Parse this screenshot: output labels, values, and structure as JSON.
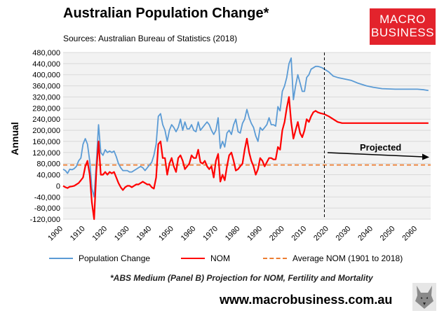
{
  "header": {
    "title": "Australian Population Change*",
    "source": "Sources: Australian Bureau of Statistics (2018)"
  },
  "logo": {
    "line1": "MACRO",
    "line2": "BUSINESS"
  },
  "footer": {
    "footnote": "*ABS Medium (Panel B) Projection for NOM, Fertility and Mortality",
    "url": "www.macrobusiness.com.au"
  },
  "colors": {
    "population": "#5b9bd5",
    "nom": "#ff0000",
    "average": "#ed7d31",
    "plot_bg": "#f2f2f2",
    "logo": "#e3232c"
  },
  "chart_data": {
    "type": "line",
    "title": "Australian Population Change*",
    "xlabel": "",
    "ylabel": "Annual",
    "xlim": [
      1900,
      2066
    ],
    "ylim": [
      -120000,
      480000
    ],
    "x_ticks": [
      1900,
      1910,
      1920,
      1930,
      1940,
      1950,
      1960,
      1970,
      1980,
      1990,
      2000,
      2010,
      2020,
      2030,
      2040,
      2050,
      2060
    ],
    "y_ticks": [
      -120000,
      -80000,
      -40000,
      0,
      40000,
      80000,
      120000,
      160000,
      200000,
      240000,
      280000,
      320000,
      360000,
      400000,
      440000,
      480000
    ],
    "y_tick_labels": [
      "-120,000",
      "-80,000",
      "-40,000",
      "0",
      "40,000",
      "80,000",
      "120,000",
      "160,000",
      "200,000",
      "240,000",
      "280,000",
      "320,000",
      "360,000",
      "400,000",
      "440,000",
      "480,000"
    ],
    "projection_start": 2018,
    "annotation": "Projected",
    "legend_position": "bottom",
    "series": [
      {
        "name": "Population Change",
        "points": [
          [
            1900,
            60000
          ],
          [
            1901,
            55000
          ],
          [
            1902,
            45000
          ],
          [
            1903,
            60000
          ],
          [
            1904,
            58000
          ],
          [
            1905,
            62000
          ],
          [
            1906,
            70000
          ],
          [
            1907,
            90000
          ],
          [
            1908,
            100000
          ],
          [
            1909,
            150000
          ],
          [
            1910,
            170000
          ],
          [
            1911,
            150000
          ],
          [
            1912,
            90000
          ],
          [
            1913,
            -10000
          ],
          [
            1914,
            -40000
          ],
          [
            1915,
            80000
          ],
          [
            1916,
            220000
          ],
          [
            1917,
            120000
          ],
          [
            1918,
            110000
          ],
          [
            1919,
            130000
          ],
          [
            1920,
            120000
          ],
          [
            1921,
            125000
          ],
          [
            1922,
            120000
          ],
          [
            1923,
            125000
          ],
          [
            1924,
            105000
          ],
          [
            1925,
            80000
          ],
          [
            1926,
            65000
          ],
          [
            1927,
            55000
          ],
          [
            1928,
            55000
          ],
          [
            1929,
            55000
          ],
          [
            1930,
            50000
          ],
          [
            1931,
            50000
          ],
          [
            1932,
            55000
          ],
          [
            1933,
            60000
          ],
          [
            1934,
            65000
          ],
          [
            1935,
            70000
          ],
          [
            1936,
            65000
          ],
          [
            1937,
            55000
          ],
          [
            1938,
            65000
          ],
          [
            1939,
            75000
          ],
          [
            1940,
            85000
          ],
          [
            1941,
            110000
          ],
          [
            1942,
            150000
          ],
          [
            1943,
            250000
          ],
          [
            1944,
            260000
          ],
          [
            1945,
            220000
          ],
          [
            1946,
            200000
          ],
          [
            1947,
            160000
          ],
          [
            1948,
            200000
          ],
          [
            1949,
            220000
          ],
          [
            1950,
            210000
          ],
          [
            1951,
            195000
          ],
          [
            1952,
            210000
          ],
          [
            1953,
            240000
          ],
          [
            1954,
            200000
          ],
          [
            1955,
            230000
          ],
          [
            1956,
            205000
          ],
          [
            1957,
            205000
          ],
          [
            1958,
            220000
          ],
          [
            1959,
            200000
          ],
          [
            1960,
            195000
          ],
          [
            1961,
            230000
          ],
          [
            1962,
            200000
          ],
          [
            1963,
            210000
          ],
          [
            1964,
            220000
          ],
          [
            1965,
            230000
          ],
          [
            1966,
            220000
          ],
          [
            1967,
            200000
          ],
          [
            1968,
            185000
          ],
          [
            1969,
            200000
          ],
          [
            1970,
            245000
          ],
          [
            1971,
            135000
          ],
          [
            1972,
            160000
          ],
          [
            1973,
            140000
          ],
          [
            1974,
            190000
          ],
          [
            1975,
            200000
          ],
          [
            1976,
            185000
          ],
          [
            1977,
            220000
          ],
          [
            1978,
            240000
          ],
          [
            1979,
            195000
          ],
          [
            1980,
            190000
          ],
          [
            1981,
            225000
          ],
          [
            1982,
            240000
          ],
          [
            1983,
            275000
          ],
          [
            1984,
            245000
          ],
          [
            1985,
            225000
          ],
          [
            1986,
            210000
          ],
          [
            1987,
            180000
          ],
          [
            1988,
            160000
          ],
          [
            1989,
            210000
          ],
          [
            1990,
            200000
          ],
          [
            1991,
            210000
          ],
          [
            1992,
            220000
          ],
          [
            1993,
            245000
          ],
          [
            1994,
            220000
          ],
          [
            1995,
            220000
          ],
          [
            1996,
            215000
          ],
          [
            1997,
            285000
          ],
          [
            1998,
            270000
          ],
          [
            1999,
            340000
          ],
          [
            2000,
            360000
          ],
          [
            2001,
            390000
          ],
          [
            2002,
            440000
          ],
          [
            2003,
            460000
          ],
          [
            2004,
            310000
          ],
          [
            2005,
            360000
          ],
          [
            2006,
            400000
          ],
          [
            2007,
            370000
          ],
          [
            2008,
            340000
          ],
          [
            2009,
            340000
          ],
          [
            2010,
            390000
          ],
          [
            2011,
            400000
          ],
          [
            2012,
            420000
          ],
          [
            2013,
            425000
          ],
          [
            2014,
            430000
          ],
          [
            2015,
            430000
          ],
          [
            2016,
            428000
          ],
          [
            2017,
            425000
          ],
          [
            2018,
            420000
          ],
          [
            2020,
            410000
          ],
          [
            2022,
            395000
          ],
          [
            2024,
            390000
          ],
          [
            2027,
            385000
          ],
          [
            2030,
            380000
          ],
          [
            2033,
            370000
          ],
          [
            2037,
            360000
          ],
          [
            2040,
            355000
          ],
          [
            2044,
            350000
          ],
          [
            2050,
            348000
          ],
          [
            2056,
            348000
          ],
          [
            2060,
            348000
          ],
          [
            2063,
            346000
          ],
          [
            2065,
            343000
          ]
        ]
      },
      {
        "name": "NOM",
        "points": [
          [
            1900,
            0
          ],
          [
            1901,
            -5000
          ],
          [
            1902,
            -8000
          ],
          [
            1903,
            -3000
          ],
          [
            1904,
            -2000
          ],
          [
            1905,
            0
          ],
          [
            1906,
            5000
          ],
          [
            1907,
            10000
          ],
          [
            1908,
            20000
          ],
          [
            1909,
            30000
          ],
          [
            1910,
            70000
          ],
          [
            1911,
            90000
          ],
          [
            1912,
            40000
          ],
          [
            1913,
            -60000
          ],
          [
            1914,
            -120000
          ],
          [
            1915,
            50000
          ],
          [
            1916,
            160000
          ],
          [
            1917,
            40000
          ],
          [
            1918,
            40000
          ],
          [
            1919,
            50000
          ],
          [
            1920,
            40000
          ],
          [
            1921,
            50000
          ],
          [
            1922,
            45000
          ],
          [
            1923,
            50000
          ],
          [
            1924,
            30000
          ],
          [
            1925,
            10000
          ],
          [
            1926,
            -5000
          ],
          [
            1927,
            -15000
          ],
          [
            1928,
            -5000
          ],
          [
            1929,
            0
          ],
          [
            1930,
            0
          ],
          [
            1931,
            -5000
          ],
          [
            1932,
            0
          ],
          [
            1933,
            5000
          ],
          [
            1934,
            5000
          ],
          [
            1935,
            10000
          ],
          [
            1936,
            15000
          ],
          [
            1937,
            10000
          ],
          [
            1938,
            5000
          ],
          [
            1939,
            5000
          ],
          [
            1940,
            -5000
          ],
          [
            1941,
            -10000
          ],
          [
            1942,
            30000
          ],
          [
            1943,
            150000
          ],
          [
            1944,
            160000
          ],
          [
            1945,
            100000
          ],
          [
            1946,
            100000
          ],
          [
            1947,
            40000
          ],
          [
            1948,
            80000
          ],
          [
            1949,
            100000
          ],
          [
            1950,
            70000
          ],
          [
            1951,
            50000
          ],
          [
            1952,
            100000
          ],
          [
            1953,
            110000
          ],
          [
            1954,
            90000
          ],
          [
            1955,
            60000
          ],
          [
            1956,
            70000
          ],
          [
            1957,
            80000
          ],
          [
            1958,
            110000
          ],
          [
            1959,
            100000
          ],
          [
            1960,
            100000
          ],
          [
            1961,
            130000
          ],
          [
            1962,
            85000
          ],
          [
            1963,
            80000
          ],
          [
            1964,
            90000
          ],
          [
            1965,
            70000
          ],
          [
            1966,
            60000
          ],
          [
            1967,
            70000
          ],
          [
            1968,
            30000
          ],
          [
            1969,
            90000
          ],
          [
            1970,
            115000
          ],
          [
            1971,
            15000
          ],
          [
            1972,
            40000
          ],
          [
            1973,
            20000
          ],
          [
            1974,
            70000
          ],
          [
            1975,
            110000
          ],
          [
            1976,
            120000
          ],
          [
            1977,
            90000
          ],
          [
            1978,
            55000
          ],
          [
            1979,
            60000
          ],
          [
            1980,
            70000
          ],
          [
            1981,
            80000
          ],
          [
            1982,
            130000
          ],
          [
            1983,
            170000
          ],
          [
            1984,
            120000
          ],
          [
            1985,
            90000
          ],
          [
            1986,
            70000
          ],
          [
            1987,
            40000
          ],
          [
            1988,
            60000
          ],
          [
            1989,
            100000
          ],
          [
            1990,
            90000
          ],
          [
            1991,
            70000
          ],
          [
            1992,
            85000
          ],
          [
            1993,
            100000
          ],
          [
            1994,
            100000
          ],
          [
            1995,
            95000
          ],
          [
            1996,
            95000
          ],
          [
            1997,
            140000
          ],
          [
            1998,
            130000
          ],
          [
            1999,
            200000
          ],
          [
            2000,
            230000
          ],
          [
            2001,
            280000
          ],
          [
            2002,
            320000
          ],
          [
            2003,
            230000
          ],
          [
            2004,
            170000
          ],
          [
            2005,
            200000
          ],
          [
            2006,
            230000
          ],
          [
            2007,
            190000
          ],
          [
            2008,
            175000
          ],
          [
            2009,
            200000
          ],
          [
            2010,
            240000
          ],
          [
            2011,
            230000
          ],
          [
            2012,
            250000
          ],
          [
            2013,
            265000
          ],
          [
            2014,
            270000
          ],
          [
            2015,
            265000
          ],
          [
            2016,
            262000
          ],
          [
            2017,
            260000
          ],
          [
            2018,
            258000
          ],
          [
            2020,
            250000
          ],
          [
            2022,
            240000
          ],
          [
            2024,
            230000
          ],
          [
            2026,
            226000
          ],
          [
            2030,
            226000
          ],
          [
            2040,
            226000
          ],
          [
            2050,
            226000
          ],
          [
            2060,
            226000
          ],
          [
            2065,
            226000
          ]
        ]
      },
      {
        "name": "Average NOM (1901 to 2018)",
        "points": [
          [
            1900,
            75000
          ],
          [
            2066,
            75000
          ]
        ]
      }
    ]
  }
}
